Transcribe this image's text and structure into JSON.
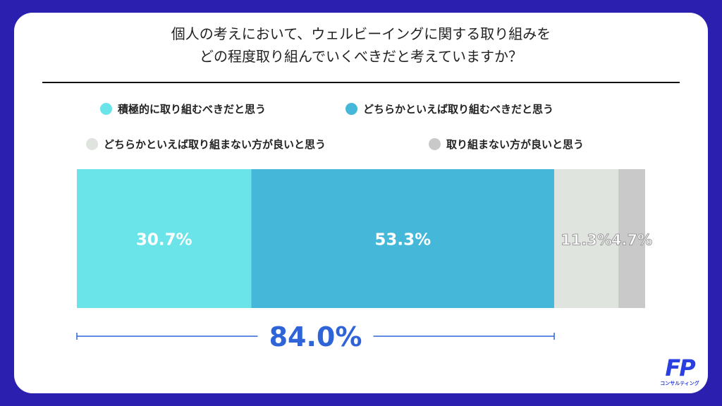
{
  "title_lines": [
    "個人の考えにおいて、ウェルビーイングに関する取り組みを",
    "どの程度取り組んでいくべきだと考えていますか？"
  ],
  "logo": {
    "mark": "FP",
    "subtitle": "コンサルティング"
  },
  "colors": {
    "background": "#2a1fae",
    "bracket": "#2f64d8"
  },
  "chart_data": {
    "type": "bar",
    "orientation": "horizontal-stacked-100",
    "categories": [
      ""
    ],
    "series": [
      {
        "name": "積極的に取り組むべきだと思う",
        "values": [
          30.7
        ],
        "label": "30.7%",
        "color": "#6ae4e8"
      },
      {
        "name": "どちらかといえば取り組むべきだと思う",
        "values": [
          53.3
        ],
        "label": "53.3%",
        "color": "#45b7d8"
      },
      {
        "name": "どちらかといえば取り組まない方が良いと思う",
        "values": [
          11.3
        ],
        "label": "11.3%",
        "color": "#e0e4de"
      },
      {
        "name": "取り組まない方が良いと思う",
        "values": [
          4.7
        ],
        "label": "4.7%",
        "color": "#c9c9c9"
      }
    ],
    "xlim": [
      0,
      100
    ],
    "legend_position": "top",
    "grid": false,
    "annotation": {
      "label": "84.0%",
      "value": 84.0,
      "spans_series": [
        0,
        1
      ]
    }
  }
}
